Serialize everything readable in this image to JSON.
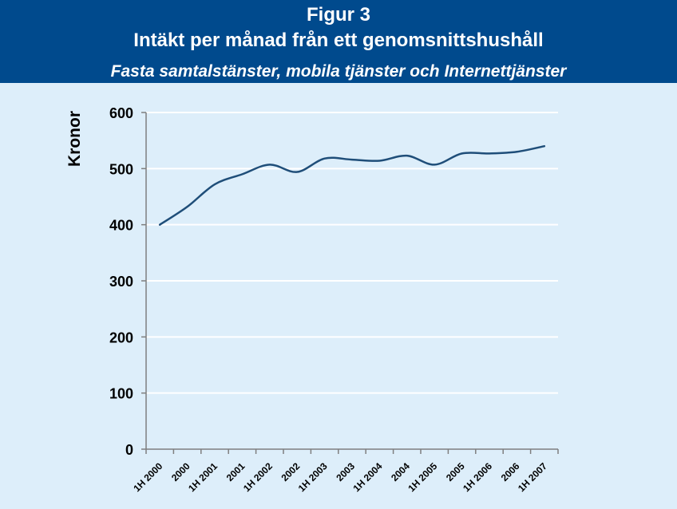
{
  "header": {
    "figure_label": "Figur 3",
    "title": "Intäkt per månad från ett genomsnittshushåll",
    "subtitle": "Fasta samtalstänster, mobila tjänster och Internettjänster"
  },
  "colors": {
    "header_bg": "#004a8d",
    "plot_bg": "#ddeefa",
    "line": "#1f4e79",
    "grid": "#ffffff"
  },
  "chart_data": {
    "type": "line",
    "title": "Intäkt per månad från ett genomsnittshushåll",
    "subtitle": "Fasta samtalstänster, mobila tjänster och Internettjänster",
    "xlabel": "",
    "ylabel": "Kronor",
    "ylim": [
      0,
      600
    ],
    "yticks": [
      0,
      100,
      200,
      300,
      400,
      500,
      600
    ],
    "grid": true,
    "legend": "none",
    "categories": [
      "1H 2000",
      "2000",
      "1H 2001",
      "2001",
      "1H 2002",
      "2002",
      "1H 2003",
      "2003",
      "1H 2004",
      "2004",
      "1H 2005",
      "2005",
      "1H 2006",
      "2006",
      "1H 2007"
    ],
    "series": [
      {
        "color": "#1f4e79",
        "values": [
          400,
          432,
          472,
          490,
          507,
          494,
          518,
          516,
          514,
          523,
          507,
          527,
          527,
          530,
          540
        ]
      }
    ]
  }
}
